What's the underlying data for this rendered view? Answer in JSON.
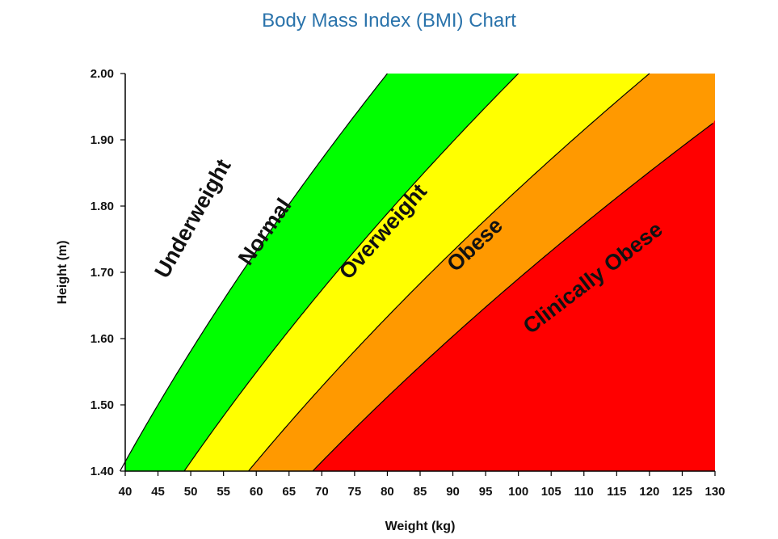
{
  "chart_data": {
    "type": "area",
    "title": "Body Mass Index (BMI) Chart",
    "xlabel": "Weight (kg)",
    "ylabel": "Height (m)",
    "xlim": [
      40,
      130
    ],
    "ylim": [
      1.4,
      2.0
    ],
    "x_ticks": [
      40,
      45,
      50,
      55,
      60,
      65,
      70,
      75,
      80,
      85,
      90,
      95,
      100,
      105,
      110,
      115,
      120,
      125,
      130
    ],
    "y_ticks": [
      "1.40",
      "1.50",
      "1.60",
      "1.70",
      "1.80",
      "1.90",
      "2.00"
    ],
    "bmi_boundaries": [
      20,
      25,
      30,
      35
    ],
    "grid": false,
    "legend": "none",
    "zones": [
      {
        "name": "Underweight",
        "bmi_min": null,
        "bmi_max": 20,
        "color": "#ffffff",
        "label_at": {
          "weight": 50.5,
          "height": 1.78
        }
      },
      {
        "name": "Normal",
        "bmi_min": 20,
        "bmi_max": 25,
        "color": "#00ff00",
        "label_at": {
          "weight": 61.5,
          "height": 1.76
        }
      },
      {
        "name": "Overweight",
        "bmi_min": 25,
        "bmi_max": 30,
        "color": "#ffff00",
        "label_at": {
          "weight": 79.5,
          "height": 1.76
        }
      },
      {
        "name": "Obese",
        "bmi_min": 30,
        "bmi_max": 35,
        "color": "#ff9900",
        "label_at": {
          "weight": 93.5,
          "height": 1.74
        }
      },
      {
        "name": "Clinically Obese",
        "bmi_min": 35,
        "bmi_max": null,
        "color": "#ff0000",
        "label_at": {
          "weight": 111.5,
          "height": 1.69
        }
      }
    ]
  }
}
